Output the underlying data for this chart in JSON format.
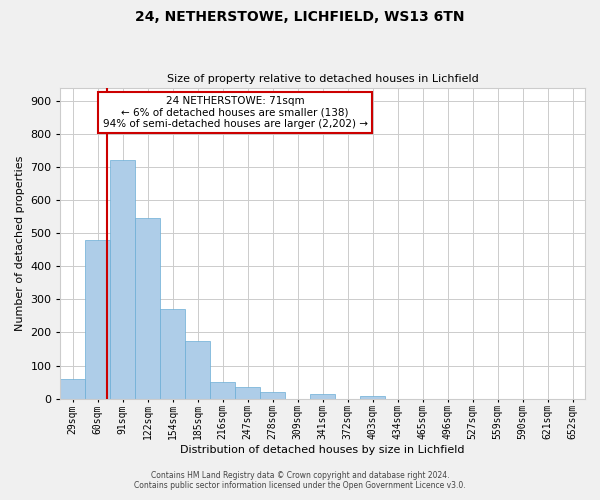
{
  "title": "24, NETHERSTOWE, LICHFIELD, WS13 6TN",
  "subtitle": "Size of property relative to detached houses in Lichfield",
  "xlabel": "Distribution of detached houses by size in Lichfield",
  "ylabel": "Number of detached properties",
  "bar_labels": [
    "29sqm",
    "60sqm",
    "91sqm",
    "122sqm",
    "154sqm",
    "185sqm",
    "216sqm",
    "247sqm",
    "278sqm",
    "309sqm",
    "341sqm",
    "372sqm",
    "403sqm",
    "434sqm",
    "465sqm",
    "496sqm",
    "527sqm",
    "559sqm",
    "590sqm",
    "621sqm",
    "652sqm"
  ],
  "bar_values": [
    60,
    480,
    720,
    545,
    270,
    175,
    50,
    35,
    20,
    0,
    15,
    0,
    8,
    0,
    0,
    0,
    0,
    0,
    0,
    0,
    0
  ],
  "bar_color": "#aecde8",
  "bar_edge_color": "#6baed6",
  "vline_color": "#cc0000",
  "vline_x": 1.37,
  "annotation_line1": "24 NETHERSTOWE: 71sqm",
  "annotation_line2": "← 6% of detached houses are smaller (138)",
  "annotation_line3": "94% of semi-detached houses are larger (2,202) →",
  "annotation_box_color": "#ffffff",
  "annotation_box_edge": "#cc0000",
  "ylim": [
    0,
    940
  ],
  "yticks": [
    0,
    100,
    200,
    300,
    400,
    500,
    600,
    700,
    800,
    900
  ],
  "footer1": "Contains HM Land Registry data © Crown copyright and database right 2024.",
  "footer2": "Contains public sector information licensed under the Open Government Licence v3.0.",
  "bg_color": "#f0f0f0",
  "plot_bg_color": "#ffffff",
  "grid_color": "#cccccc"
}
